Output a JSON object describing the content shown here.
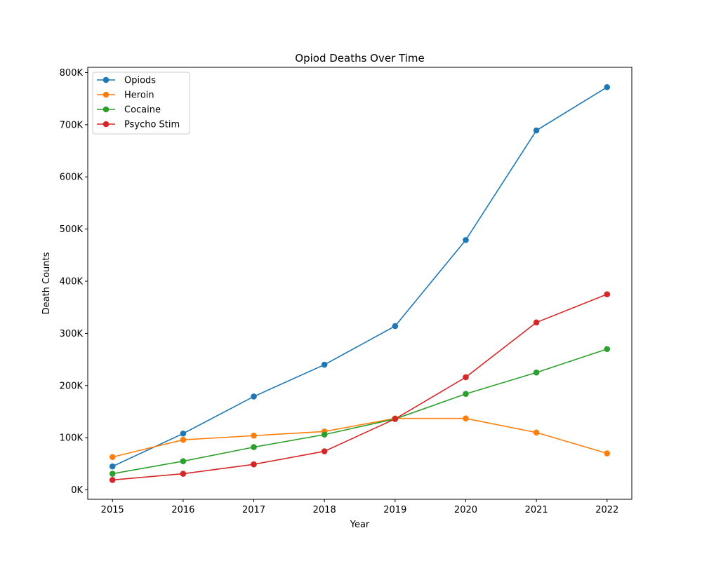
{
  "chart_data": {
    "type": "line",
    "title": "Opiod Deaths Over Time",
    "xlabel": "Year",
    "ylabel": "Death Counts",
    "x": [
      2015,
      2016,
      2017,
      2018,
      2019,
      2020,
      2021,
      2022
    ],
    "x_tick_labels": [
      "2015",
      "2016",
      "2017",
      "2018",
      "2019",
      "2020",
      "2021",
      "2022"
    ],
    "xlim": [
      2014.65,
      2022.35
    ],
    "ylim": [
      -18000,
      810000
    ],
    "y_ticks": [
      0,
      100000,
      200000,
      300000,
      400000,
      500000,
      600000,
      700000,
      800000
    ],
    "y_tick_labels": [
      "0K",
      "100K",
      "200K",
      "300K",
      "400K",
      "500K",
      "600K",
      "700K",
      "800K"
    ],
    "grid": false,
    "legend_position": "upper-left",
    "series": [
      {
        "name": "Opiods",
        "color": "#1f77b4",
        "values": [
          45000,
          108000,
          179000,
          240000,
          314000,
          479000,
          689000,
          772000
        ]
      },
      {
        "name": "Heroin",
        "color": "#ff7f0e",
        "values": [
          63000,
          96000,
          104000,
          112000,
          137000,
          137000,
          110000,
          70000
        ]
      },
      {
        "name": "Cocaine",
        "color": "#2ca02c",
        "values": [
          31000,
          55000,
          82000,
          106000,
          136000,
          184000,
          225000,
          270000
        ]
      },
      {
        "name": "Psycho Stim",
        "color": "#d62728",
        "values": [
          19000,
          31000,
          49000,
          74000,
          136000,
          216000,
          321000,
          375000
        ]
      }
    ]
  }
}
